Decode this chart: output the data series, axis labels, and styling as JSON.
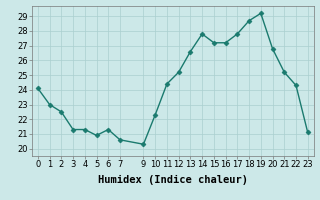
{
  "x": [
    0,
    1,
    2,
    3,
    4,
    5,
    6,
    7,
    9,
    10,
    11,
    12,
    13,
    14,
    15,
    16,
    17,
    18,
    19,
    20,
    21,
    22,
    23
  ],
  "y": [
    24.1,
    23.0,
    22.5,
    21.3,
    21.3,
    20.9,
    21.3,
    20.6,
    20.3,
    22.3,
    24.4,
    25.2,
    26.6,
    27.8,
    27.2,
    27.2,
    27.8,
    28.7,
    29.2,
    26.8,
    25.2,
    24.3,
    21.1
  ],
  "xlabel": "Humidex (Indice chaleur)",
  "xlim": [
    -0.5,
    23.5
  ],
  "ylim": [
    19.5,
    29.7
  ],
  "yticks": [
    20,
    21,
    22,
    23,
    24,
    25,
    26,
    27,
    28,
    29
  ],
  "xticks": [
    0,
    1,
    2,
    3,
    4,
    5,
    6,
    7,
    9,
    10,
    11,
    12,
    13,
    14,
    15,
    16,
    17,
    18,
    19,
    20,
    21,
    22,
    23
  ],
  "line_color": "#1a7a6e",
  "bg_color": "#cce8e8",
  "grid_color": "#aacfcf",
  "marker": "D",
  "marker_size": 2.5,
  "line_width": 1.0,
  "xlabel_fontsize": 7.5,
  "tick_fontsize": 6.0
}
